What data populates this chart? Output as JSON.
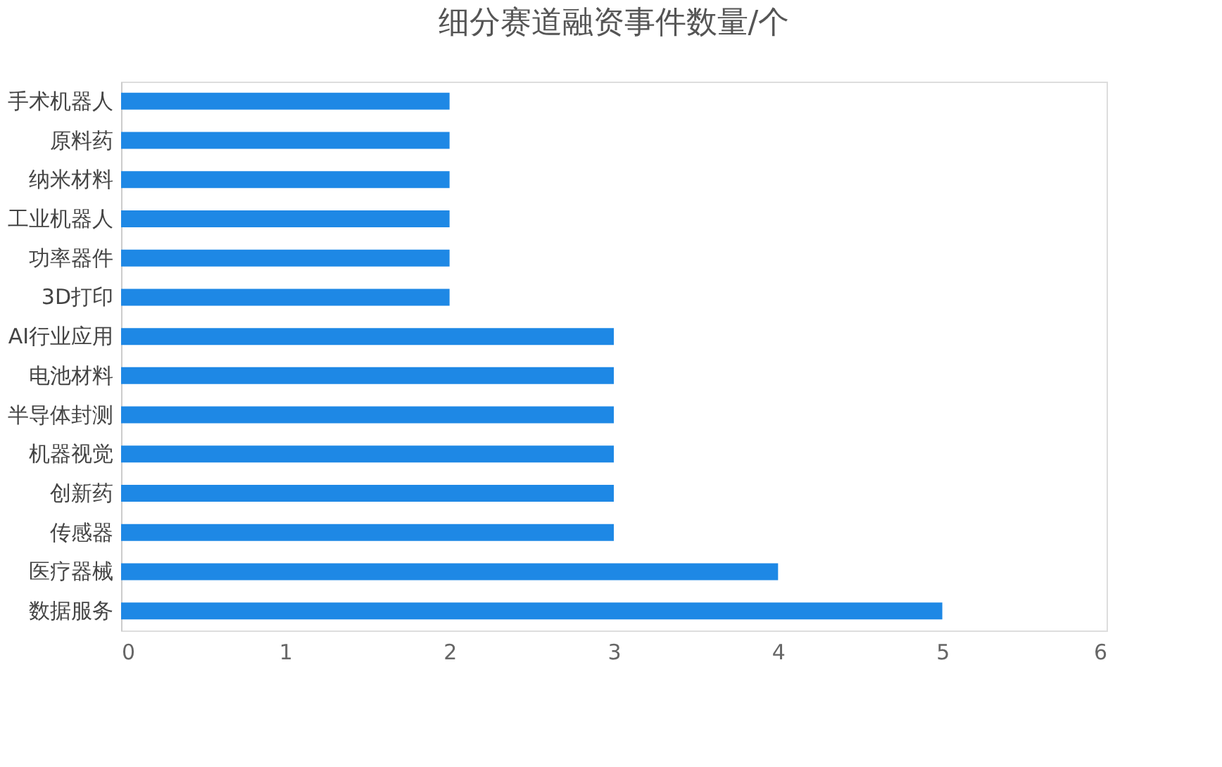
{
  "chart_data": {
    "type": "bar",
    "title": "细分赛道融资事件数量/个",
    "orientation": "horizontal",
    "categories": [
      "手术机器人",
      "原料药",
      "纳米材料",
      "工业机器人",
      "功率器件",
      "3D打印",
      "AI行业应用",
      "电池材料",
      "半导体封测",
      "机器视觉",
      "创新药",
      "传感器",
      "医疗器械",
      "数据服务"
    ],
    "values": [
      2,
      2,
      2,
      2,
      2,
      2,
      3,
      3,
      3,
      3,
      3,
      3,
      4,
      5
    ],
    "color": "#1e88e5",
    "xlim": [
      0,
      6
    ],
    "xticks": [
      0,
      1,
      2,
      3,
      4,
      5,
      6
    ],
    "grid": false
  }
}
